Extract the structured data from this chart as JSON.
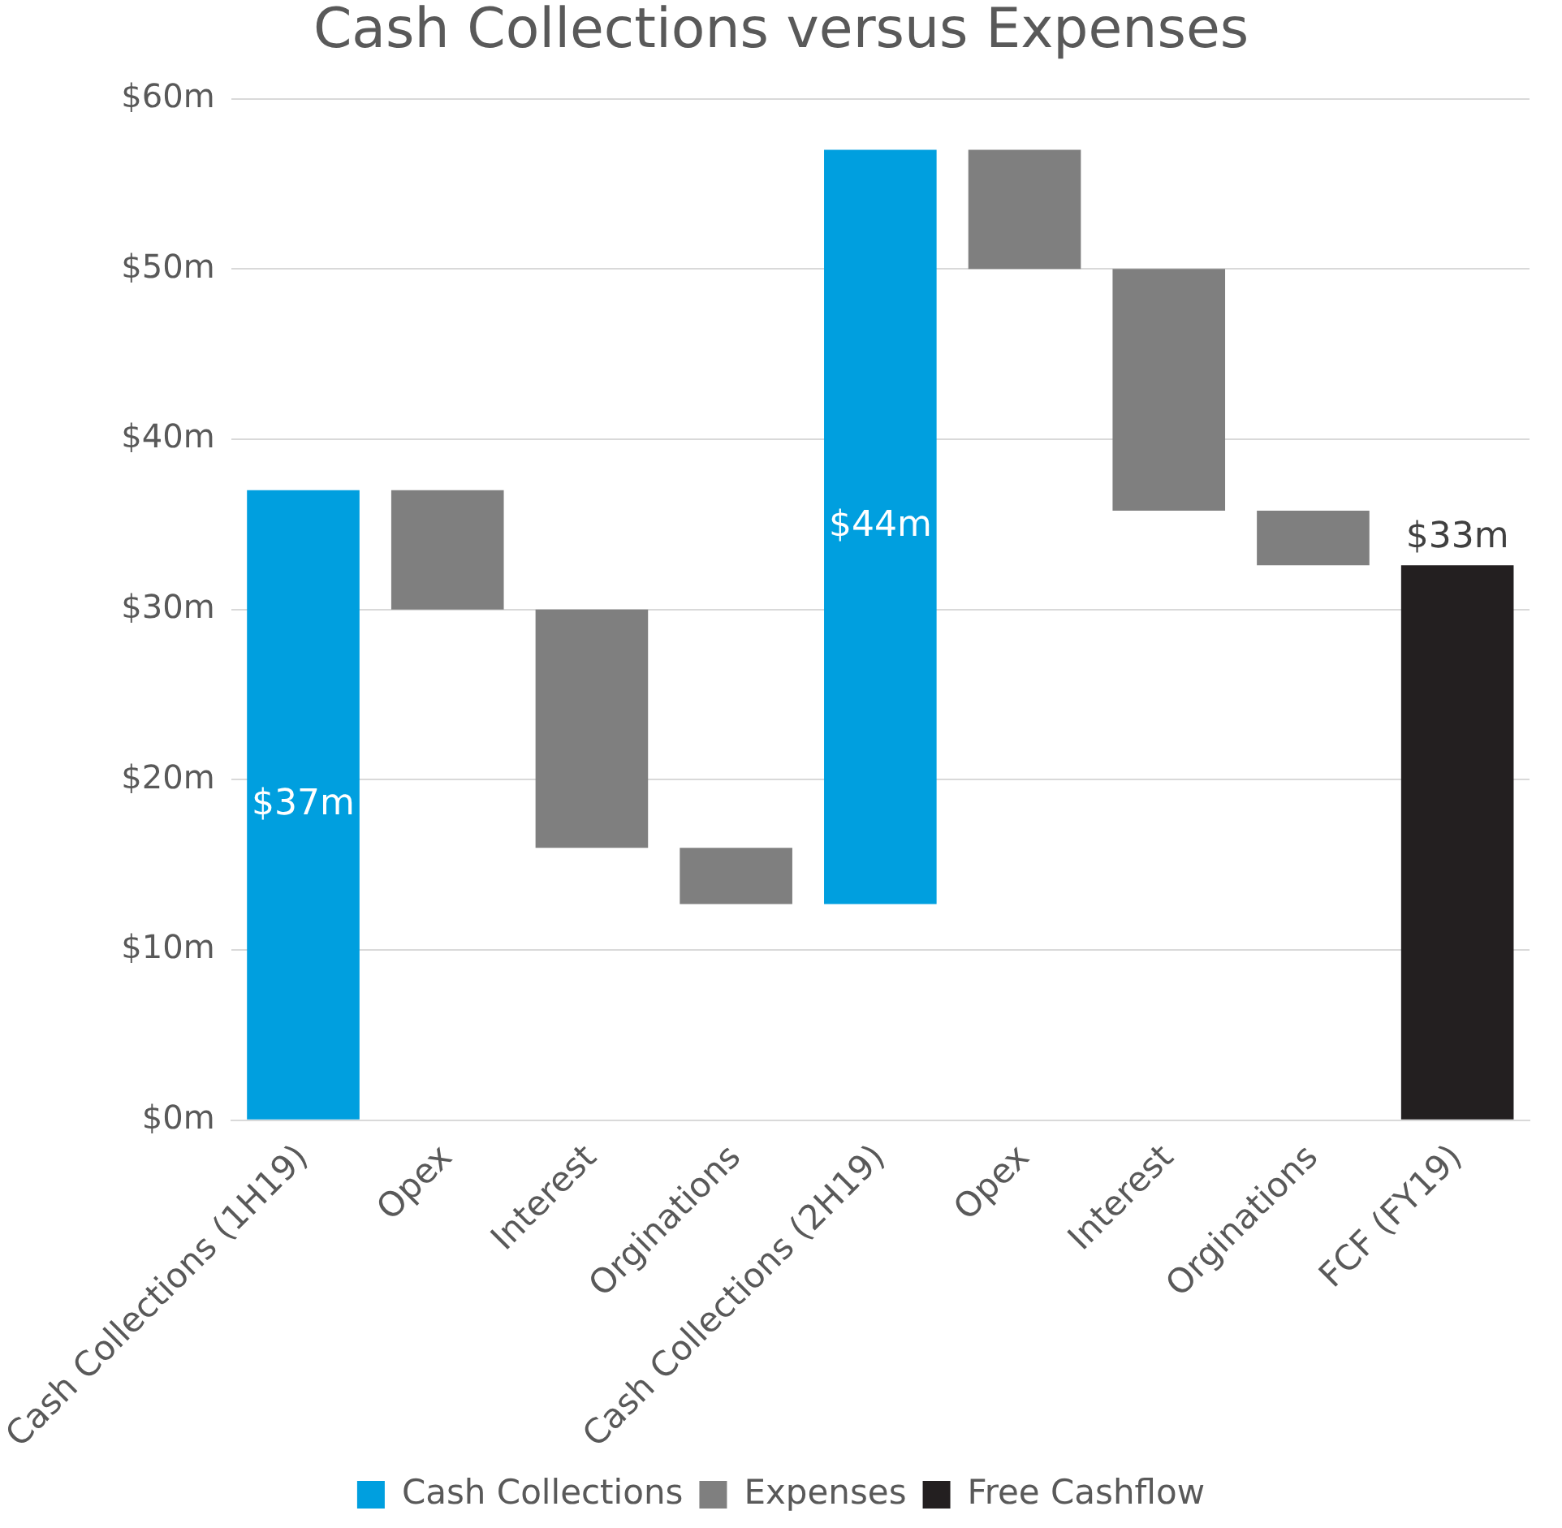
{
  "chart_data": {
    "type": "bar",
    "title": "Cash Collections versus Expenses",
    "categories": [
      "Cash Collections (1H19)",
      "Opex",
      "Interest",
      "Orginations",
      "Cash Collections (2H19)",
      "Opex",
      "Interest",
      "Orginations",
      "FCF (FY19)"
    ],
    "series": [
      {
        "name": "Cash Collections",
        "color": "#009fdf",
        "values": [
          37,
          null,
          null,
          null,
          44.3,
          null,
          null,
          null,
          null
        ],
        "base": [
          0,
          null,
          null,
          null,
          12.7,
          null,
          null,
          null,
          null
        ],
        "value_labels": [
          "$37m",
          null,
          null,
          null,
          "$44m",
          null,
          null,
          null,
          null
        ]
      },
      {
        "name": "Expenses",
        "color": "#7f7f7f",
        "values": [
          null,
          7,
          14,
          3.3,
          null,
          7,
          14.2,
          3.2,
          null
        ],
        "base": [
          null,
          30,
          16,
          12.7,
          null,
          50,
          35.8,
          32.6,
          null
        ]
      },
      {
        "name": "Free Cashflow",
        "color": "#231f20",
        "values": [
          null,
          null,
          null,
          null,
          null,
          null,
          null,
          null,
          32.6
        ],
        "base": [
          null,
          null,
          null,
          null,
          null,
          null,
          null,
          null,
          0
        ],
        "value_labels": [
          null,
          null,
          null,
          null,
          null,
          null,
          null,
          null,
          "$33m"
        ]
      }
    ],
    "ylim": [
      0,
      60
    ],
    "yticks": [
      {
        "value": 0,
        "label": "$0m"
      },
      {
        "value": 10,
        "label": "$10m"
      },
      {
        "value": 20,
        "label": "$20m"
      },
      {
        "value": 30,
        "label": "$30m"
      },
      {
        "value": 40,
        "label": "$40m"
      },
      {
        "value": 50,
        "label": "$50m"
      },
      {
        "value": 60,
        "label": "$60m"
      }
    ],
    "grid": "y",
    "legend": "bottom"
  }
}
